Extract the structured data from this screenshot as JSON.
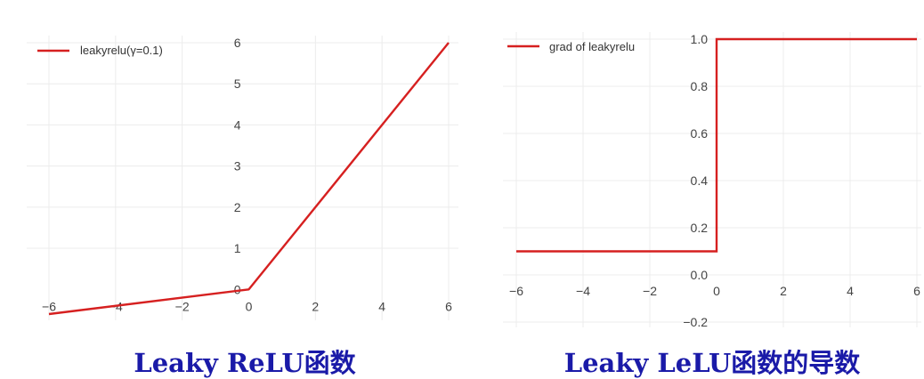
{
  "chart_data": [
    {
      "type": "line",
      "title": "",
      "caption": "Leaky ReLU函数",
      "xlabel": "",
      "ylabel": "",
      "xlim": [
        -6,
        6
      ],
      "ylim": [
        -0.6,
        6
      ],
      "x_ticks": [
        -6,
        -4,
        -2,
        0,
        2,
        4,
        6
      ],
      "y_ticks": [
        1,
        2,
        3,
        4,
        5,
        6
      ],
      "x_tick_labels": [
        "−6",
        "−4",
        "−2",
        "0",
        "2",
        "4",
        "6"
      ],
      "y_tick_labels": [
        "1",
        "2",
        "3",
        "4",
        "5",
        "6"
      ],
      "zero_label": "0",
      "grid": true,
      "legend_position": "top-left",
      "series": [
        {
          "name": "leakyrelu(γ=0.1)",
          "color": "#d62020",
          "x": [
            -6,
            0,
            6
          ],
          "y": [
            -0.6,
            0,
            6
          ]
        }
      ]
    },
    {
      "type": "line",
      "title": "",
      "caption": "Leaky LeLU函数的导数",
      "xlabel": "",
      "ylabel": "",
      "xlim": [
        -6,
        6
      ],
      "ylim": [
        -0.2,
        1.0
      ],
      "x_ticks": [
        -6,
        -4,
        -2,
        0,
        2,
        4,
        6
      ],
      "y_ticks": [
        -0.2,
        0.0,
        0.2,
        0.4,
        0.6,
        0.8,
        1.0
      ],
      "x_tick_labels": [
        "−6",
        "−4",
        "−2",
        "0",
        "2",
        "4",
        "6"
      ],
      "y_tick_labels": [
        "−0.2",
        "0.0",
        "0.2",
        "0.4",
        "0.6",
        "0.8",
        "1.0"
      ],
      "grid": true,
      "legend_position": "top-left",
      "series": [
        {
          "name": "grad of leakyrelu",
          "color": "#d62020",
          "x": [
            -6,
            0,
            0,
            6
          ],
          "y": [
            0.1,
            0.1,
            1.0,
            1.0
          ]
        }
      ]
    }
  ]
}
